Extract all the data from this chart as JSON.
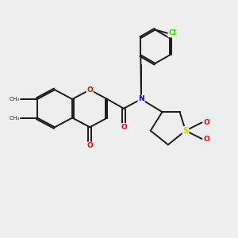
{
  "background_color": "#eeeeee",
  "bond_color": "#1a1a1a",
  "atom_colors": {
    "O": "#ff0000",
    "N": "#0000ee",
    "S": "#cccc00",
    "Cl": "#33cc00"
  },
  "figsize": [
    3.0,
    3.0
  ],
  "dpi": 100
}
